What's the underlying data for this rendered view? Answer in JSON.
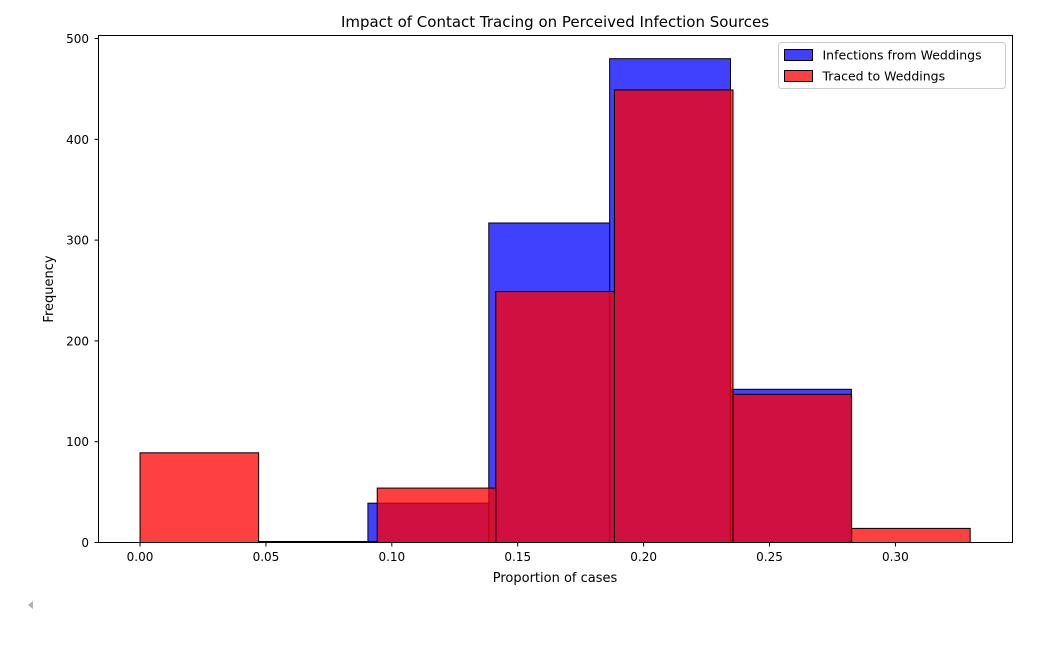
{
  "chart_data": {
    "type": "bar",
    "title": "Impact of Contact Tracing on Perceived Infection Sources",
    "xlabel": "Proportion of cases",
    "ylabel": "Frequency",
    "xlim": [
      -0.0165,
      0.3465
    ],
    "ylim": [
      0,
      503
    ],
    "xticks": [
      0.0,
      0.05,
      0.1,
      0.15,
      0.2,
      0.25,
      0.3
    ],
    "xtick_labels": [
      "0.00",
      "0.05",
      "0.10",
      "0.15",
      "0.20",
      "0.25",
      "0.30"
    ],
    "yticks": [
      0,
      100,
      200,
      300,
      400,
      500
    ],
    "ytick_labels": [
      "0",
      "100",
      "200",
      "300",
      "400",
      "500"
    ],
    "grid": false,
    "legend_position": "top-right",
    "series": [
      {
        "name": "Infections from Weddings",
        "color": "#0000ff",
        "alpha": 0.75,
        "bins": [
          {
            "x0": 0.0905,
            "x1": 0.1385,
            "count": 39
          },
          {
            "x0": 0.1385,
            "x1": 0.1865,
            "count": 317
          },
          {
            "x0": 0.1865,
            "x1": 0.2345,
            "count": 480
          },
          {
            "x0": 0.2345,
            "x1": 0.2825,
            "count": 152
          }
        ]
      },
      {
        "name": "Traced to Weddings",
        "color": "#ff0000",
        "alpha": 0.75,
        "bins": [
          {
            "x0": 0.0,
            "x1": 0.0471,
            "count": 89
          },
          {
            "x0": 0.0471,
            "x1": 0.0942,
            "count": 1
          },
          {
            "x0": 0.0942,
            "x1": 0.1413,
            "count": 54
          },
          {
            "x0": 0.1413,
            "x1": 0.1884,
            "count": 249
          },
          {
            "x0": 0.1884,
            "x1": 0.2355,
            "count": 449
          },
          {
            "x0": 0.2355,
            "x1": 0.2826,
            "count": 147
          },
          {
            "x0": 0.2826,
            "x1": 0.3297,
            "count": 14
          }
        ]
      }
    ]
  }
}
